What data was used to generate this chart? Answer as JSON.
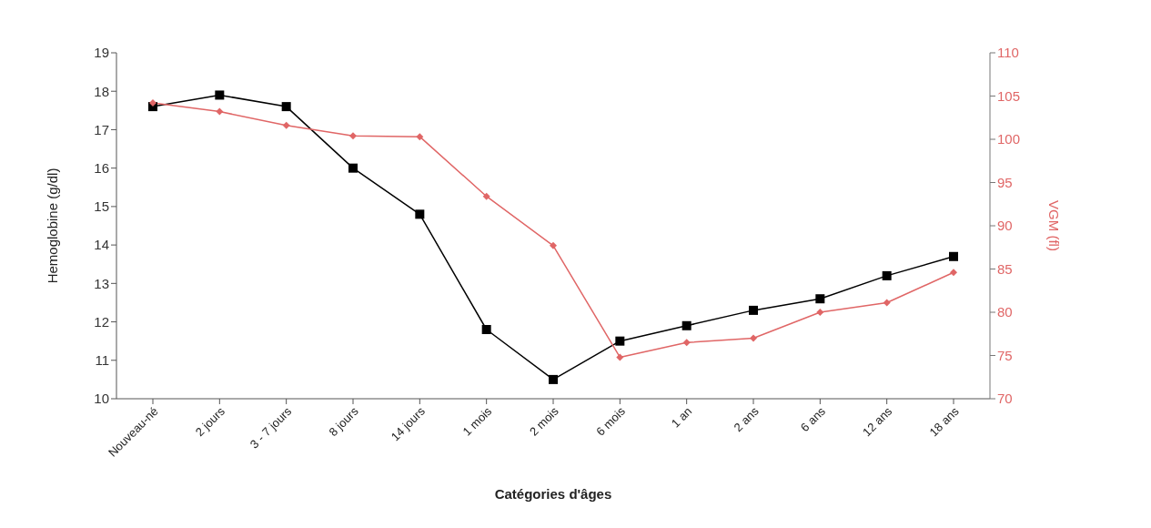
{
  "chart_data": {
    "type": "line",
    "xlabel": "Catégories d'âges",
    "ylabel": "Hemoglobine (g/dl)",
    "y2label": "VGM (fl)",
    "categories": [
      "Nouveau-né",
      "2 jours",
      "3 - 7 jours",
      "8 jours",
      "14 jours",
      "1 mois",
      "2 mois",
      "6 mois",
      "1 an",
      "2 ans",
      "6 ans",
      "12 ans",
      "18 ans"
    ],
    "series": [
      {
        "color": "#000000",
        "marker": "square",
        "values": [
          17.6,
          17.9,
          17.6,
          16.0,
          14.8,
          11.8,
          10.5,
          11.5,
          11.9,
          12.3,
          12.6,
          13.2,
          13.7
        ]
      },
      {
        "color": "#e06666",
        "marker": "diamond",
        "axis": "y2",
        "values": [
          104.2,
          103.2,
          101.6,
          100.4,
          100.3,
          93.4,
          87.7,
          74.8,
          76.5,
          77.0,
          80.0,
          81.1,
          84.6
        ]
      }
    ],
    "ylim": [
      10,
      19
    ],
    "yticks": [
      10,
      11,
      12,
      13,
      14,
      15,
      16,
      17,
      18,
      19
    ],
    "y2lim": [
      70,
      110
    ],
    "y2ticks": [
      70,
      75,
      80,
      85,
      90,
      95,
      100,
      105,
      110
    ],
    "grid": false,
    "legend": false
  }
}
